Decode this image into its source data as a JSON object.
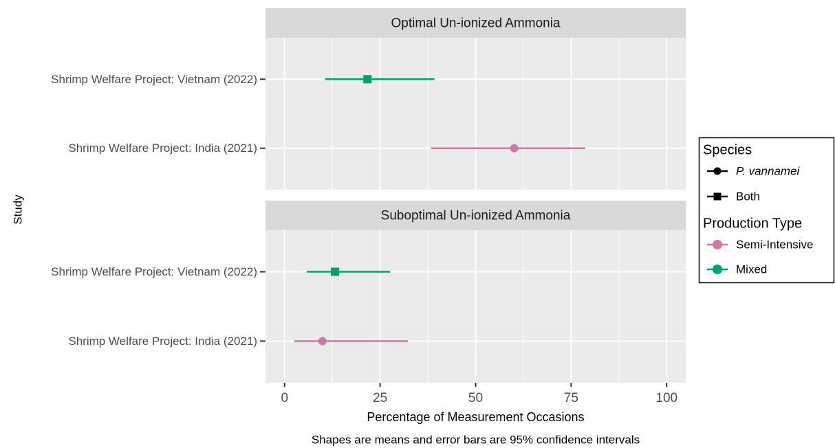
{
  "chart_data": {
    "type": "pointrange",
    "y_label": "Study",
    "x_label": "Percentage of Measurement Occasions",
    "caption": "Shapes are means and error bars are 95% confidence intervals",
    "xlim": [
      -5,
      105
    ],
    "xticks": [
      0,
      25,
      50,
      75,
      100
    ],
    "grid": true,
    "categories": [
      "Shrimp Welfare Project: Vietnam (2022)",
      "Shrimp Welfare Project: India (2021)"
    ],
    "legend": {
      "species": {
        "title": "Species",
        "items": [
          {
            "name": "P. vannamei",
            "shape": "circle"
          },
          {
            "name": "Both",
            "shape": "square"
          }
        ]
      },
      "production": {
        "title": "Production Type",
        "items": [
          {
            "name": "Semi-Intensive",
            "color": "#CC79A7"
          },
          {
            "name": "Mixed",
            "color": "#009E73"
          }
        ]
      }
    },
    "panels": [
      {
        "title": "Optimal Un-ionized Ammonia",
        "values": [
          21.7,
          60.1
        ],
        "lower": [
          10.6,
          38.3
        ],
        "upper": [
          39.2,
          78.7
        ],
        "shapes": [
          "square",
          "circle"
        ],
        "colors": [
          "#009E73",
          "#CC79A7"
        ]
      },
      {
        "title": "Suboptimal Un-ionized Ammonia",
        "values": [
          13.2,
          9.9
        ],
        "lower": [
          5.8,
          2.5
        ],
        "upper": [
          27.6,
          32.3
        ],
        "shapes": [
          "square",
          "circle"
        ],
        "colors": [
          "#009E73",
          "#CC79A7"
        ]
      }
    ]
  }
}
